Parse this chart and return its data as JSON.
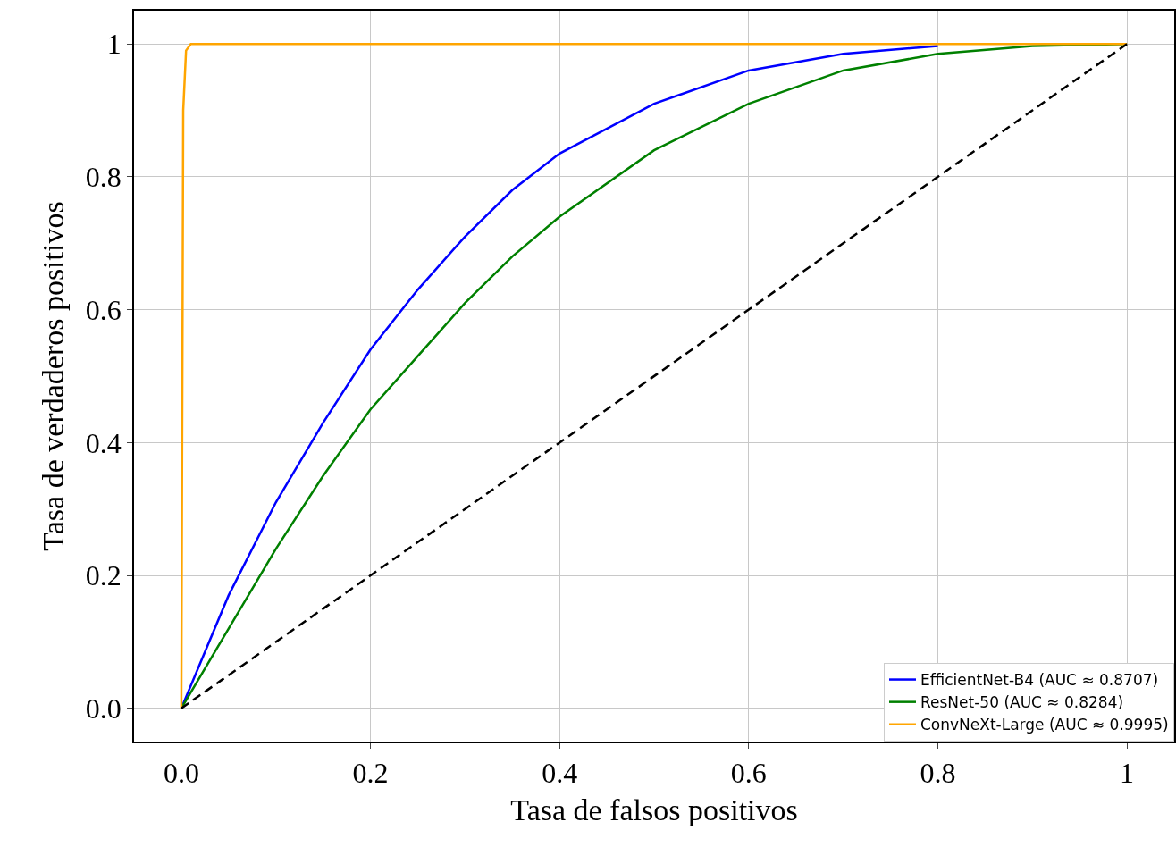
{
  "chart_data": {
    "type": "line",
    "xlabel": "Tasa de falsos positivos",
    "ylabel": "Tasa de verdaderos positivos",
    "xlim": [
      -0.05,
      1.05
    ],
    "ylim": [
      -0.05,
      1.05
    ],
    "xticks": [
      {
        "value": 0,
        "label": "0.0"
      },
      0.2,
      0.4,
      0.6,
      0.8,
      1
    ],
    "yticks": [
      {
        "value": 0,
        "label": "0.0"
      },
      0.2,
      0.4,
      0.6,
      0.8,
      1
    ],
    "grid": true,
    "legend": "bottom right",
    "marker": "none",
    "line_style": "solid",
    "series": [
      {
        "name": "EfficientNet-B4 (AUC ≈ 0.8707)",
        "color": "#0000ff",
        "x": [
          0,
          0.05,
          0.1,
          0.15,
          0.2,
          0.25,
          0.3,
          0.35,
          0.4,
          0.5,
          0.6,
          0.7,
          0.8
        ],
        "values": [
          0,
          0.17,
          0.31,
          0.43,
          0.54,
          0.63,
          0.71,
          0.78,
          0.835,
          0.91,
          0.96,
          0.985,
          0.997
        ]
      },
      {
        "name": "ResNet-50 (AUC ≈ 0.8284)",
        "color": "#008000",
        "x": [
          0,
          0.05,
          0.1,
          0.15,
          0.2,
          0.25,
          0.3,
          0.35,
          0.4,
          0.5,
          0.6,
          0.7,
          0.8,
          0.9,
          1
        ],
        "values": [
          0,
          0.12,
          0.24,
          0.35,
          0.45,
          0.53,
          0.61,
          0.68,
          0.74,
          0.84,
          0.91,
          0.96,
          0.985,
          0.997,
          1
        ]
      },
      {
        "name": "ConvNeXt-Large (AUC ≈ 0.9995)",
        "color": "#ffa500",
        "x": [
          0,
          0.002,
          0.005,
          0.01,
          1
        ],
        "values": [
          0,
          0.9,
          0.99,
          1,
          1
        ]
      },
      {
        "color": "#000000",
        "line_style": "dashed",
        "x": [
          0,
          1
        ],
        "values": [
          0,
          1
        ]
      }
    ]
  }
}
